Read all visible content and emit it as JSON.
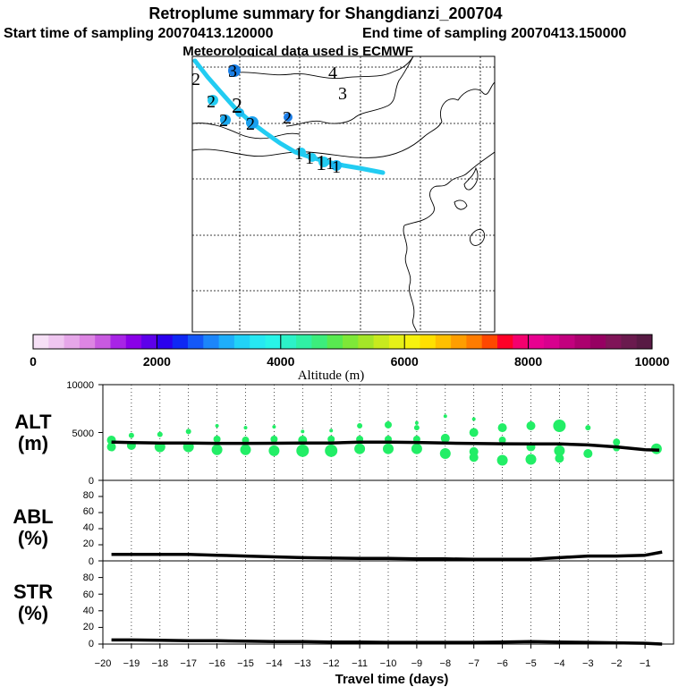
{
  "header": {
    "title": "Retroplume summary for Shangdianzi_200704",
    "start_label": "Start time of sampling 20070413.120000",
    "end_label": "End time of sampling 20070413.150000",
    "met_label": "Meteorological data used is ECMWF"
  },
  "colorbar": {
    "title": "Altitude (m)",
    "ticks": [
      "0",
      "2000",
      "4000",
      "6000",
      "8000",
      "10000"
    ],
    "colors": [
      "#f6e0f6",
      "#efc6f0",
      "#e6a7e9",
      "#dd85e3",
      "#c85ae0",
      "#a824e6",
      "#8a00e8",
      "#5d00ea",
      "#2b00ee",
      "#0f28f4",
      "#1458f8",
      "#1c86fa",
      "#1eaefa",
      "#21d2f7",
      "#26e8f2",
      "#28f4e8",
      "#2cf2c8",
      "#30f0a4",
      "#3ced7c",
      "#58ea50",
      "#7ee838",
      "#a4e628",
      "#c8ea1e",
      "#e6f018",
      "#f6f20e",
      "#ffe000",
      "#ffc000",
      "#ff9e00",
      "#ff7c00",
      "#ff4800",
      "#ff0028",
      "#f4006e",
      "#e80090",
      "#d8008e",
      "#c2007e",
      "#ac006e",
      "#960062",
      "#801458",
      "#6a1a4e",
      "#581a44"
    ]
  },
  "map": {
    "trajectory_color": "#22ccf2",
    "labels": [
      {
        "text": "2",
        "kind": "digit"
      },
      {
        "text": "2",
        "kind": "digit"
      },
      {
        "text": "2",
        "kind": "digit"
      },
      {
        "text": "2",
        "kind": "digit"
      },
      {
        "text": "3",
        "kind": "digit"
      },
      {
        "text": "4",
        "kind": "digit"
      },
      {
        "text": "3",
        "kind": "digit"
      },
      {
        "text": "2",
        "kind": "digit"
      },
      {
        "text": "2",
        "kind": "digit"
      },
      {
        "text": "1",
        "kind": "digit"
      },
      {
        "text": "1",
        "kind": "digit"
      },
      {
        "text": "1",
        "kind": "digit"
      },
      {
        "text": "1",
        "kind": "digit"
      },
      {
        "text": "1",
        "kind": "digit"
      }
    ]
  },
  "panels": {
    "alt": {
      "label_top": "ALT",
      "label_bottom": "(m)",
      "ticks": [
        "10000",
        "5000",
        "0"
      ]
    },
    "abl": {
      "label_top": "ABL",
      "label_bottom": "(%)",
      "ticks": [
        "80",
        "60",
        "40",
        "20",
        "0"
      ]
    },
    "str": {
      "label_top": "STR",
      "label_bottom": "(%)",
      "ticks": [
        "80",
        "60",
        "40",
        "20",
        "0"
      ]
    }
  },
  "xaxis": {
    "label": "Travel time (days)",
    "ticks": [
      "−20",
      "−19",
      "−18",
      "−17",
      "−16",
      "−15",
      "−14",
      "−13",
      "−12",
      "−11",
      "−10",
      "−9",
      "−8",
      "−7",
      "−6",
      "−5",
      "−4",
      "−3",
      "−2",
      "−1"
    ]
  },
  "chart_data": [
    {
      "type": "line",
      "name": "ALT",
      "title": "Retroplume summary for Shangdianzi_200704",
      "xlabel": "Travel time (days)",
      "ylabel": "ALT (m)",
      "xlim": [
        -20,
        0
      ],
      "ylim": [
        0,
        10000
      ],
      "x": [
        -19.7,
        -19,
        -18,
        -17,
        -16,
        -15,
        -14,
        -13,
        -12,
        -11,
        -10,
        -9,
        -8,
        -7,
        -6,
        -5,
        -4,
        -3,
        -2,
        -1,
        -0.5
      ],
      "values": [
        4000,
        3950,
        3900,
        3900,
        3870,
        3870,
        3880,
        3900,
        3900,
        4000,
        4000,
        3960,
        3900,
        3850,
        3820,
        3800,
        3800,
        3700,
        3500,
        3200,
        3150
      ],
      "cluster_color": "#22ee66",
      "clusters": [
        {
          "x": -19.7,
          "y": [
            4200,
            3500
          ],
          "s": [
            5,
            5
          ]
        },
        {
          "x": -19,
          "y": [
            4700,
            3650
          ],
          "s": [
            3,
            5
          ]
        },
        {
          "x": -18,
          "y": [
            4800,
            3500
          ],
          "s": [
            3,
            6
          ]
        },
        {
          "x": -17,
          "y": [
            5100,
            3500
          ],
          "s": [
            3,
            6
          ]
        },
        {
          "x": -16,
          "y": [
            5700,
            4300,
            3200
          ],
          "s": [
            2,
            4,
            6
          ]
        },
        {
          "x": -15,
          "y": [
            5500,
            4200,
            3200
          ],
          "s": [
            2,
            4,
            6
          ]
        },
        {
          "x": -14,
          "y": [
            5600,
            4300,
            3100
          ],
          "s": [
            2,
            4,
            6
          ]
        },
        {
          "x": -13,
          "y": [
            5100,
            4200,
            3100
          ],
          "s": [
            2,
            5,
            7
          ]
        },
        {
          "x": -12,
          "y": [
            5200,
            4300,
            3100
          ],
          "s": [
            2,
            4,
            7
          ]
        },
        {
          "x": -11,
          "y": [
            5700,
            4300,
            3300
          ],
          "s": [
            3,
            4,
            6
          ]
        },
        {
          "x": -10,
          "y": [
            5800,
            4300,
            3300
          ],
          "s": [
            4,
            4,
            6
          ]
        },
        {
          "x": -9,
          "y": [
            6000,
            5500,
            4300,
            3300
          ],
          "s": [
            2,
            3,
            4,
            6
          ]
        },
        {
          "x": -8,
          "y": [
            6700,
            4400,
            2800
          ],
          "s": [
            2,
            5,
            6
          ]
        },
        {
          "x": -7,
          "y": [
            6400,
            5000,
            3000,
            2400
          ],
          "s": [
            2,
            5,
            5,
            5
          ]
        },
        {
          "x": -6,
          "y": [
            5500,
            4200,
            2100
          ],
          "s": [
            5,
            4,
            6
          ]
        },
        {
          "x": -5,
          "y": [
            5700,
            3500,
            2200
          ],
          "s": [
            5,
            5,
            6
          ]
        },
        {
          "x": -4,
          "y": [
            5700,
            3100,
            2300
          ],
          "s": [
            7,
            6,
            5
          ]
        },
        {
          "x": -3,
          "y": [
            5500,
            2800
          ],
          "s": [
            3,
            5
          ]
        },
        {
          "x": -2,
          "y": [
            4000,
            3400
          ],
          "s": [
            4,
            4
          ]
        },
        {
          "x": -0.6,
          "y": [
            3300
          ],
          "s": [
            6
          ]
        }
      ]
    },
    {
      "type": "line",
      "name": "ABL",
      "xlabel": "Travel time (days)",
      "ylabel": "ABL (%)",
      "xlim": [
        -20,
        0
      ],
      "ylim": [
        0,
        100
      ],
      "x": [
        -19.7,
        -19,
        -18,
        -17,
        -16,
        -15,
        -14,
        -13,
        -12,
        -11,
        -10,
        -9,
        -8,
        -7,
        -6,
        -5,
        -4,
        -3,
        -2,
        -1,
        -0.4
      ],
      "values": [
        8,
        8,
        8,
        8,
        7,
        6,
        5,
        4,
        3.5,
        3,
        3,
        2.5,
        2.5,
        2,
        2,
        2,
        4,
        6,
        6,
        7,
        11
      ]
    },
    {
      "type": "line",
      "name": "STR",
      "xlabel": "Travel time (days)",
      "ylabel": "STR (%)",
      "xlim": [
        -20,
        0
      ],
      "ylim": [
        0,
        100
      ],
      "x": [
        -19.7,
        -19,
        -18,
        -17,
        -16,
        -15,
        -14,
        -13,
        -12,
        -11,
        -10,
        -9,
        -8,
        -7,
        -6,
        -5,
        -4,
        -3,
        -2,
        -1,
        -0.4
      ],
      "values": [
        5,
        5,
        4.5,
        4,
        4,
        3.5,
        3,
        3,
        2.5,
        2.5,
        2,
        2,
        2,
        2,
        2.5,
        3,
        2.5,
        2,
        1.5,
        1,
        0
      ]
    }
  ]
}
